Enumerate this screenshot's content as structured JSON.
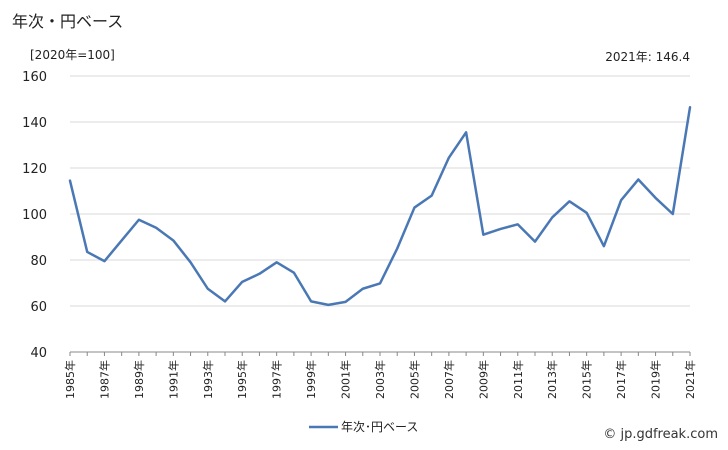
{
  "header": {
    "title": "年次・円ベース",
    "unit": "[2020年=100]",
    "latest": "2021年: 146.4"
  },
  "footer": {
    "credit": "© jp.gdfreak.com"
  },
  "colors": {
    "series": "#4a78b5",
    "grid": "#d9d9d9"
  },
  "chart_data": {
    "type": "line",
    "x": [
      1985,
      1986,
      1987,
      1988,
      1989,
      1990,
      1991,
      1992,
      1993,
      1994,
      1995,
      1996,
      1997,
      1998,
      1999,
      2000,
      2001,
      2002,
      2003,
      2004,
      2005,
      2006,
      2007,
      2008,
      2009,
      2010,
      2011,
      2012,
      2013,
      2014,
      2015,
      2016,
      2017,
      2018,
      2019,
      2020,
      2021
    ],
    "x_tick_labels": [
      "1985年",
      "1987年",
      "1989年",
      "1991年",
      "1993年",
      "1995年",
      "1997年",
      "1999年",
      "2001年",
      "2003年",
      "2005年",
      "2007年",
      "2009年",
      "2011年",
      "2013年",
      "2015年",
      "2017年",
      "2019年",
      "2021年"
    ],
    "series": [
      {
        "name": "年次･円ベース",
        "values": [
          114.5,
          83.5,
          79.5,
          88.5,
          97.5,
          94.0,
          88.5,
          79.0,
          67.5,
          62.0,
          70.5,
          74.0,
          79.0,
          74.5,
          62.0,
          60.5,
          61.8,
          67.5,
          69.8,
          85.0,
          102.8,
          108.0,
          124.5,
          135.5,
          91.0,
          93.5,
          95.5,
          88.0,
          98.5,
          105.5,
          100.5,
          86.0,
          106.0,
          115.0,
          107.0,
          100.0,
          146.4
        ]
      }
    ],
    "ylim": [
      40,
      160
    ],
    "y_ticks": [
      40,
      60,
      80,
      100,
      120,
      140,
      160
    ],
    "grid": true,
    "legend": "bottom-center",
    "xlabel": "",
    "ylabel": ""
  }
}
